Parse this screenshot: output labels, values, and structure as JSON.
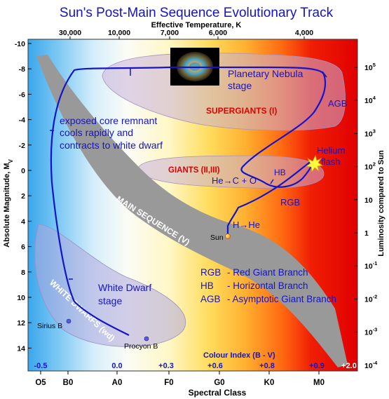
{
  "title": "Sun's Post-Main Sequence Evolutionary Track",
  "top_axis": {
    "label": "Effective Temperature, K",
    "ticks": [
      "30,000",
      "10,000",
      "7,000",
      "6,000",
      "4,000"
    ]
  },
  "left_axis": {
    "label": "Absolute Magnitude, M",
    "label_sub": "V",
    "ticks": [
      "-10",
      "-8",
      "-6",
      "-4",
      "-2",
      "0",
      "2",
      "4",
      "6",
      "8",
      "10",
      "12",
      "14"
    ]
  },
  "right_axis": {
    "label": "Luminosity compared to Sun",
    "ticks": [
      {
        "base": "10",
        "exp": "5"
      },
      {
        "base": "10",
        "exp": "4"
      },
      {
        "base": "10",
        "exp": "3"
      },
      {
        "base": "10",
        "exp": "2"
      },
      {
        "base": "10",
        "exp": ""
      },
      {
        "base": "1",
        "exp": ""
      },
      {
        "base": "10",
        "exp": "-1"
      },
      {
        "base": "10",
        "exp": "-2"
      },
      {
        "base": "10",
        "exp": "-3"
      },
      {
        "base": "10",
        "exp": "-4"
      }
    ]
  },
  "bottom_axis": {
    "label": "Spectral Class",
    "ticks": [
      "O5",
      "B0",
      "A0",
      "F0",
      "G0",
      "K0",
      "M0"
    ]
  },
  "colour_index": {
    "label": "Colour Index (B - V)",
    "values": [
      "-0.5",
      "0.0",
      "+0.3",
      "+0.6",
      "+0.8",
      "+0.9",
      "+2.0"
    ]
  },
  "regions": {
    "main_sequence": "MAIN SEQUENCE (V)",
    "supergiants": "SUPERGIANTS (I)",
    "giants": "GIANTS (II,III)",
    "white_dwarfs": "WHITE DWARFS (wd)"
  },
  "annotations": {
    "planetary_nebula_1": "Planetary Nebula",
    "planetary_nebula_2": "stage",
    "agb": "AGB",
    "helium_flash_1": "Helium",
    "helium_flash_2": "flash",
    "hb": "HB",
    "he_c_o": "He→C + O",
    "rgb": "RGB",
    "h_he": "H→He",
    "core_1": "exposed core remnant",
    "core_2": "cools rapidly and",
    "core_3": "contracts to white dwarf",
    "wd_stage_1": "White Dwarf",
    "wd_stage_2": "stage"
  },
  "legend": [
    {
      "abbr": "RGB",
      "text": "- Red Giant Branch"
    },
    {
      "abbr": "HB",
      "text": "- Horizontal Branch"
    },
    {
      "abbr": "AGB",
      "text": "- Asymptotic Giant Branch"
    }
  ],
  "stars": {
    "sun": "Sun",
    "sirius_b": "Sirius B",
    "procyon_b": "Procyon B"
  },
  "colors": {
    "title": "#1414c8",
    "track": "#1414c8",
    "main_sequence": "#9a9a9a",
    "region_label_red": "#e00000"
  }
}
